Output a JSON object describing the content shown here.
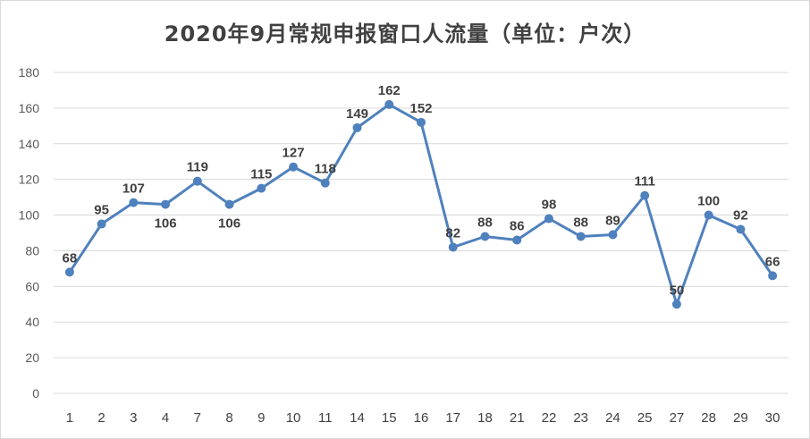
{
  "chart_data": {
    "type": "line",
    "title": "2020年9月常规申报窗口人流量（单位：户次）",
    "xlabel": "",
    "ylabel": "",
    "categories": [
      "1",
      "2",
      "3",
      "4",
      "7",
      "8",
      "9",
      "10",
      "11",
      "14",
      "15",
      "16",
      "17",
      "18",
      "21",
      "22",
      "23",
      "24",
      "25",
      "27",
      "28",
      "29",
      "30"
    ],
    "series": [
      {
        "values": [
          68,
          95,
          107,
          106,
          119,
          106,
          115,
          127,
          118,
          149,
          162,
          152,
          82,
          88,
          86,
          98,
          88,
          89,
          111,
          50,
          100,
          92,
          66
        ]
      }
    ],
    "ylim": [
      0,
      180
    ],
    "yticks": [
      "0",
      "20",
      "40",
      "60",
      "80",
      "100",
      "120",
      "140",
      "160",
      "180"
    ],
    "grid": true,
    "legend": "none",
    "line_color": "#4f81bd",
    "label_offsets": [
      "up",
      "up",
      "up",
      "down",
      "up",
      "down",
      "up",
      "up",
      "up",
      "up",
      "up",
      "up",
      "up",
      "up",
      "up",
      "up",
      "up",
      "up",
      "up",
      "up",
      "up",
      "up",
      "up"
    ]
  }
}
